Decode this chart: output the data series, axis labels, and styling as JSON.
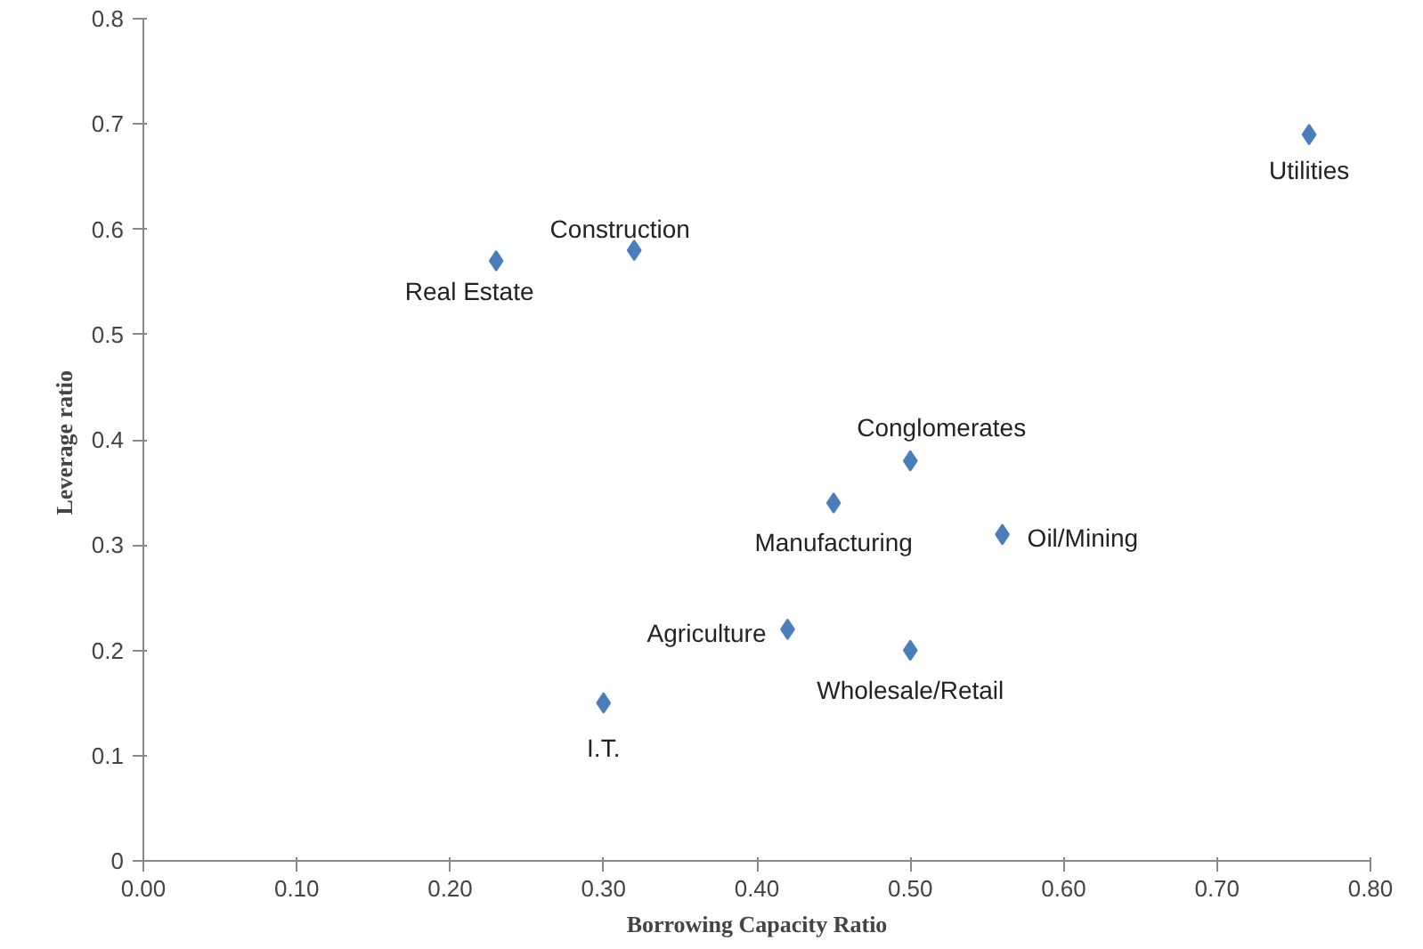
{
  "chart_data": {
    "type": "scatter",
    "xlabel": "Borrowing Capacity Ratio",
    "ylabel": "Leverage  ratio",
    "x": [
      0.23,
      0.32,
      0.76,
      0.5,
      0.45,
      0.56,
      0.42,
      0.5,
      0.3
    ],
    "series": [
      {
        "color": "#4a7ebb",
        "values": [
          0.57,
          0.58,
          0.69,
          0.38,
          0.34,
          0.31,
          0.22,
          0.2,
          0.15
        ]
      }
    ],
    "marker": "diamond",
    "grid": false,
    "xlim": [
      0,
      0.8
    ],
    "xticks": [
      {
        "value": 0,
        "label": "0.00"
      },
      {
        "value": 0.1,
        "label": "0.10"
      },
      {
        "value": 0.2,
        "label": "0.20"
      },
      {
        "value": 0.3,
        "label": "0.30"
      },
      {
        "value": 0.4,
        "label": "0.40"
      },
      {
        "value": 0.5,
        "label": "0.50"
      },
      {
        "value": 0.6,
        "label": "0.60"
      },
      {
        "value": 0.7,
        "label": "0.70"
      },
      {
        "value": 0.8,
        "label": "0.80"
      }
    ],
    "ylim": [
      0,
      0.8
    ],
    "yticks": [
      0,
      0.1,
      0.2,
      0.3,
      0.4,
      0.5,
      0.6,
      0.7,
      0.8
    ],
    "annotations": [
      {
        "text": "Real Estate",
        "x": 0.23,
        "y": 0.57
      },
      {
        "text": "Construction",
        "x": 0.32,
        "y": 0.58
      },
      {
        "text": "Utilities",
        "x": 0.76,
        "y": 0.69
      },
      {
        "text": "Conglomerates",
        "x": 0.5,
        "y": 0.38
      },
      {
        "text": "Manufacturing",
        "x": 0.45,
        "y": 0.34
      },
      {
        "text": "Oil/Mining",
        "x": 0.56,
        "y": 0.31
      },
      {
        "text": "Agriculture",
        "x": 0.42,
        "y": 0.22
      },
      {
        "text": "Wholesale/Retail",
        "x": 0.5,
        "y": 0.2
      },
      {
        "text": "I.T.",
        "x": 0.3,
        "y": 0.15
      }
    ]
  }
}
